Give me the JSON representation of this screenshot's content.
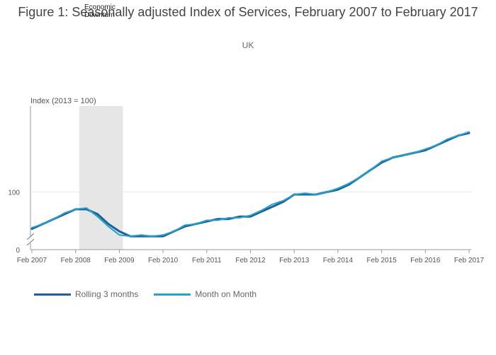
{
  "header": {
    "title": "Figure 1: Seasonally adjusted Index of Services, February 2007 to February 2017",
    "subtitle": "UK",
    "annotation": [
      "Economic",
      "Downturn"
    ]
  },
  "colors": {
    "rolling": "#206095",
    "monthly": "#27a0cc",
    "shade": "#e6e6e6",
    "axis": "#999999",
    "grid": "#e8e8e8"
  },
  "chart_data": {
    "type": "line",
    "ylabel": "Index (2013 = 100)",
    "ylim": [
      0,
      135
    ],
    "yticks": [
      0,
      100
    ],
    "xlim": [
      "2007-02",
      "2017-02"
    ],
    "xticks": [
      "Feb 2007",
      "Feb 2008",
      "Feb 2009",
      "Feb 2010",
      "Feb 2011",
      "Feb 2012",
      "Feb 2013",
      "Feb 2014",
      "Feb 2015",
      "Feb 2016",
      "Feb 2017"
    ],
    "axis_break": true,
    "shaded_region": {
      "label": "Economic Downturn",
      "from": "2008-03",
      "to": "2009-03"
    },
    "legend_position": "bottom-left",
    "x": [
      "2007-02",
      "2007-05",
      "2007-08",
      "2007-11",
      "2008-02",
      "2008-05",
      "2008-08",
      "2008-11",
      "2009-02",
      "2009-05",
      "2009-08",
      "2009-11",
      "2010-02",
      "2010-05",
      "2010-08",
      "2010-11",
      "2011-02",
      "2011-05",
      "2011-08",
      "2011-11",
      "2012-02",
      "2012-05",
      "2012-08",
      "2012-11",
      "2013-02",
      "2013-05",
      "2013-08",
      "2013-11",
      "2014-02",
      "2014-05",
      "2014-08",
      "2014-11",
      "2015-02",
      "2015-05",
      "2015-08",
      "2015-11",
      "2016-02",
      "2016-05",
      "2016-08",
      "2016-11",
      "2017-02"
    ],
    "series": [
      {
        "name": "Rolling 3 months",
        "values": [
          85,
          87,
          89,
          91,
          93,
          93,
          91,
          87,
          84,
          82,
          82,
          82,
          82,
          84,
          86,
          87,
          88,
          89,
          89,
          90,
          90,
          92,
          94,
          96,
          99,
          99,
          99,
          100,
          101,
          103,
          106,
          109,
          112,
          114,
          115,
          116,
          117,
          119,
          121,
          123,
          124
        ]
      },
      {
        "name": "Month on Month",
        "values": [
          85.5,
          87,
          89,
          91.5,
          93,
          93.5,
          90,
          86,
          82.5,
          82,
          82.5,
          82,
          82.5,
          84,
          86.5,
          87,
          88.5,
          88.5,
          89.5,
          89.5,
          90.5,
          92.5,
          95,
          96.5,
          99,
          99.5,
          99,
          100,
          101.5,
          103.5,
          106,
          109,
          112.5,
          114,
          115,
          116,
          117.5,
          119,
          121.5,
          123,
          124.5
        ]
      }
    ]
  },
  "legend": {
    "items": [
      {
        "label": "Rolling 3 months"
      },
      {
        "label": "Month on Month"
      }
    ]
  }
}
